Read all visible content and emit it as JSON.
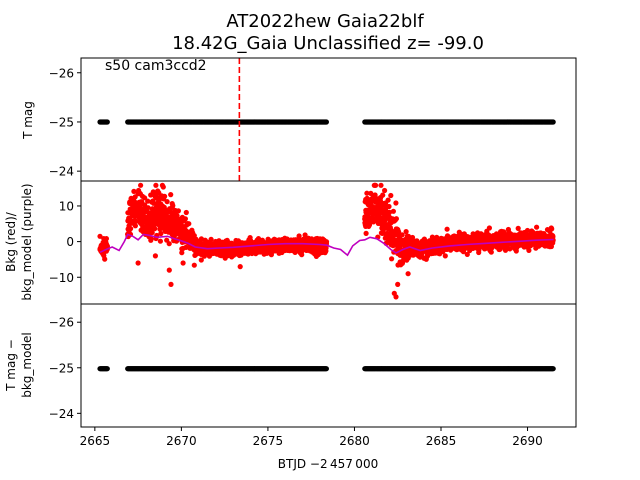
{
  "title_line1": "AT2022hew  Gaia22blf",
  "title_line2": "18.42G_Gaia Unclassified z= -99.0",
  "chart_data": [
    {
      "type": "scatter",
      "panel": "top",
      "ylabel": "T mag",
      "annotation": "s50 cam3ccd2",
      "ylim": [
        -23.8,
        -26.3
      ],
      "yticks": [
        -26,
        -25,
        -24
      ],
      "xlim": [
        2664.2,
        2692.8
      ],
      "vline": {
        "x": 2673.35,
        "style": "dashed",
        "color": "#ff0000"
      },
      "series": [
        {
          "color": "#000000",
          "segments": [
            [
              2665.3,
              2665.75
            ],
            [
              2666.9,
              2678.4
            ],
            [
              2680.6,
              2691.5
            ]
          ],
          "y": -25.0
        }
      ]
    },
    {
      "type": "scatter",
      "panel": "middle",
      "ylabel_lines": [
        "Bkg (red)/",
        "bkg_model (purple)"
      ],
      "ylim": [
        -17.5,
        17
      ],
      "yticks": [
        -10,
        0,
        10
      ],
      "xlim": [
        2664.2,
        2692.8
      ],
      "series": [
        {
          "color": "#ff0000",
          "segments": [
            [
              2665.3,
              2665.75
            ],
            [
              2666.9,
              2678.4
            ],
            [
              2680.6,
              2691.5
            ]
          ],
          "profile": [
            [
              2665.3,
              -2
            ],
            [
              2665.75,
              -1.5
            ],
            [
              2666.9,
              4
            ],
            [
              2667.2,
              9
            ],
            [
              2667.6,
              8
            ],
            [
              2668.2,
              5
            ],
            [
              2668.6,
              9
            ],
            [
              2669.2,
              6
            ],
            [
              2669.8,
              4
            ],
            [
              2670.3,
              2
            ],
            [
              2670.8,
              -1
            ],
            [
              2671.5,
              -2
            ],
            [
              2672.5,
              -2
            ],
            [
              2674,
              -1.5
            ],
            [
              2675.5,
              -1.2
            ],
            [
              2677,
              -1
            ],
            [
              2678.4,
              -1.5
            ],
            [
              2680.6,
              8
            ],
            [
              2681.2,
              9
            ],
            [
              2681.8,
              7
            ],
            [
              2682.3,
              2
            ],
            [
              2682.7,
              -3
            ],
            [
              2683.2,
              -1
            ],
            [
              2683.8,
              -2
            ],
            [
              2684.5,
              -1
            ],
            [
              2685.5,
              -0.5
            ],
            [
              2686.5,
              -0.3
            ],
            [
              2687.5,
              0
            ],
            [
              2688.5,
              0.3
            ],
            [
              2689.5,
              0.5
            ],
            [
              2690.5,
              0.7
            ],
            [
              2691.5,
              0.8
            ]
          ],
          "spread": [
            [
              2665.3,
              2
            ],
            [
              2666.9,
              6
            ],
            [
              2668,
              7
            ],
            [
              2669.5,
              6
            ],
            [
              2670.5,
              4
            ],
            [
              2671,
              2.5
            ],
            [
              2674,
              2
            ],
            [
              2678.4,
              2.2
            ],
            [
              2680.6,
              6
            ],
            [
              2682.0,
              7
            ],
            [
              2682.5,
              6
            ],
            [
              2683.2,
              3
            ],
            [
              2684,
              2.5
            ],
            [
              2691.5,
              2.5
            ]
          ],
          "outliers": [
            [
              2667.5,
              -6
            ],
            [
              2668.5,
              -4
            ],
            [
              2669.3,
              -8
            ],
            [
              2669.4,
              -12
            ],
            [
              2670.1,
              -6
            ],
            [
              2682.3,
              -14.5
            ],
            [
              2682.4,
              -15.5
            ],
            [
              2682.5,
              -12
            ],
            [
              2683.1,
              -9
            ],
            [
              2673.4,
              -7
            ]
          ]
        },
        {
          "color": "#bf00bf",
          "line": [
            [
              2665.3,
              -3
            ],
            [
              2665.75,
              -2
            ],
            [
              2666.0,
              -1.5
            ],
            [
              2666.4,
              -2.5
            ],
            [
              2666.7,
              0
            ],
            [
              2666.9,
              2
            ],
            [
              2667.2,
              1.5
            ],
            [
              2667.5,
              0.5
            ],
            [
              2667.8,
              2
            ],
            [
              2668.1,
              1.8
            ],
            [
              2668.6,
              1.2
            ],
            [
              2669.2,
              1.5
            ],
            [
              2669.6,
              0.8
            ],
            [
              2670.0,
              0.2
            ],
            [
              2670.4,
              -0.5
            ],
            [
              2670.8,
              -1.5
            ],
            [
              2671.5,
              -2
            ],
            [
              2672.2,
              -1.8
            ],
            [
              2673,
              -1.6
            ],
            [
              2674,
              -1.2
            ],
            [
              2675,
              -0.8
            ],
            [
              2676,
              -0.6
            ],
            [
              2677,
              -0.6
            ],
            [
              2678.0,
              -0.8
            ],
            [
              2678.4,
              -1
            ],
            [
              2678.8,
              -1.8
            ],
            [
              2679.2,
              -2.2
            ],
            [
              2679.6,
              -3.8
            ],
            [
              2679.9,
              -1.2
            ],
            [
              2680.3,
              0.3
            ],
            [
              2680.6,
              0.5
            ],
            [
              2680.9,
              1.2
            ],
            [
              2681.3,
              0.8
            ],
            [
              2681.7,
              -0.5
            ],
            [
              2682.1,
              -2.2
            ],
            [
              2682.4,
              -3.2
            ],
            [
              2682.8,
              -2.2
            ],
            [
              2683.2,
              -1.5
            ],
            [
              2683.8,
              -2.5
            ],
            [
              2684.5,
              -1.8
            ],
            [
              2685.5,
              -1.2
            ],
            [
              2686.5,
              -0.8
            ],
            [
              2687.5,
              -0.5
            ],
            [
              2688.5,
              -0.2
            ],
            [
              2689.5,
              0.1
            ],
            [
              2690.5,
              0.4
            ],
            [
              2691.5,
              0.6
            ]
          ]
        }
      ]
    },
    {
      "type": "scatter",
      "panel": "bottom",
      "ylabel_lines": [
        "T mag −",
        "bkg_model"
      ],
      "xlabel": "BTJD −2 457 000",
      "ylim": [
        -23.7,
        -26.4
      ],
      "yticks": [
        -26,
        -25,
        -24
      ],
      "xlim": [
        2664.2,
        2692.8
      ],
      "xticks": [
        2665,
        2670,
        2675,
        2680,
        2685,
        2690
      ],
      "series": [
        {
          "color": "#000000",
          "segments": [
            [
              2665.3,
              2665.75
            ],
            [
              2666.9,
              2678.4
            ],
            [
              2680.6,
              2691.5
            ]
          ],
          "y": -24.98
        }
      ]
    }
  ]
}
